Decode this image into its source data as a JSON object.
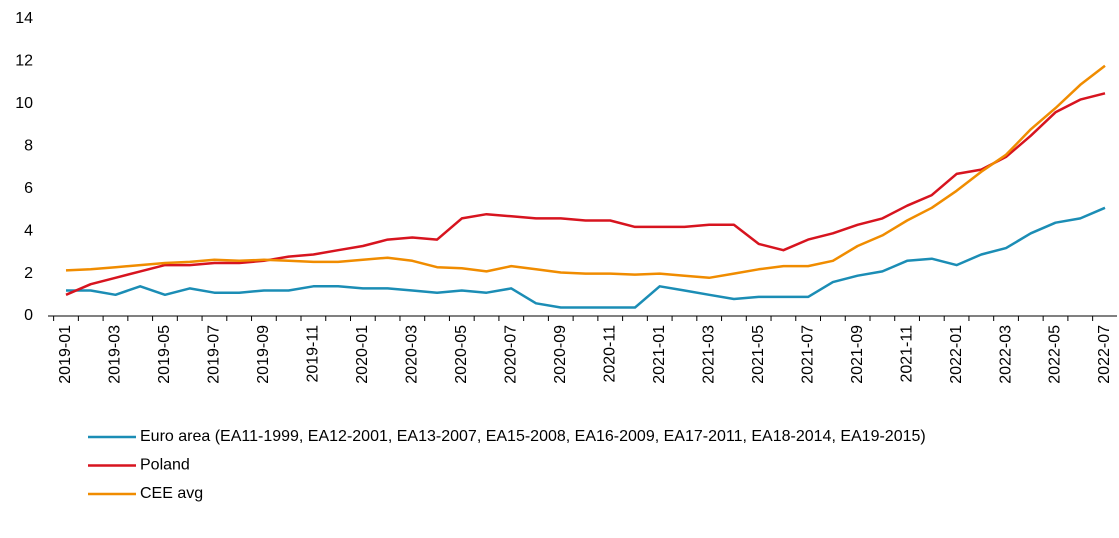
{
  "chart_data": {
    "type": "line",
    "categories": [
      "2019-01",
      null,
      "2019-03",
      null,
      "2019-05",
      null,
      "2019-07",
      null,
      "2019-09",
      null,
      "2019-11",
      null,
      "2020-01",
      null,
      "2020-03",
      null,
      "2020-05",
      null,
      "2020-07",
      null,
      "2020-09",
      null,
      "2020-11",
      null,
      "2021-01",
      null,
      "2021-03",
      null,
      "2021-05",
      null,
      "2021-07",
      null,
      "2021-09",
      null,
      "2021-11",
      null,
      "2022-01",
      null,
      "2022-03",
      null,
      "2022-05",
      null,
      "2022-07"
    ],
    "series": [
      {
        "name": "Euro area (EA11-1999, EA12-2001, EA13-2007, EA15-2008, EA16-2009, EA17-2011, EA18-2014, EA19-2015)",
        "color": "#1b8db5",
        "values": [
          1.2,
          1.2,
          1.0,
          1.4,
          1.0,
          1.3,
          1.1,
          1.1,
          1.2,
          1.2,
          1.4,
          1.4,
          1.3,
          1.3,
          1.2,
          1.1,
          1.2,
          1.1,
          1.3,
          0.6,
          0.4,
          0.4,
          0.4,
          0.4,
          1.4,
          1.2,
          1.0,
          0.8,
          0.9,
          0.9,
          0.9,
          1.6,
          1.9,
          2.1,
          2.6,
          2.7,
          2.4,
          2.9,
          3.2,
          3.9,
          4.4,
          4.6,
          5.1
        ]
      },
      {
        "name": "Poland",
        "color": "#d7141f",
        "values": [
          1.0,
          1.5,
          1.8,
          2.1,
          2.4,
          2.4,
          2.5,
          2.5,
          2.6,
          2.8,
          2.9,
          3.1,
          3.3,
          3.6,
          3.7,
          3.6,
          4.6,
          4.8,
          4.7,
          4.6,
          4.6,
          4.5,
          4.5,
          4.2,
          4.2,
          4.2,
          4.3,
          4.3,
          3.4,
          3.1,
          3.6,
          3.9,
          4.3,
          4.6,
          5.2,
          5.7,
          6.7,
          6.9,
          7.5,
          8.5,
          9.6,
          10.2,
          10.5
        ]
      },
      {
        "name": "CEE avg",
        "color": "#f08c00",
        "values": [
          2.15,
          2.2,
          2.3,
          2.4,
          2.5,
          2.55,
          2.65,
          2.6,
          2.65,
          2.6,
          2.55,
          2.55,
          2.65,
          2.75,
          2.6,
          2.3,
          2.25,
          2.1,
          2.35,
          2.2,
          2.05,
          2.0,
          2.0,
          1.95,
          2.0,
          1.9,
          1.8,
          2.0,
          2.2,
          2.35,
          2.35,
          2.6,
          3.3,
          3.8,
          4.5,
          5.1,
          5.9,
          6.8,
          7.6,
          8.8,
          9.8,
          10.9,
          11.8
        ]
      }
    ],
    "ylim": [
      0,
      14
    ],
    "yticks": [
      0,
      2,
      4,
      6,
      8,
      10,
      12,
      14
    ],
    "grid": false,
    "legend": "bottom"
  }
}
